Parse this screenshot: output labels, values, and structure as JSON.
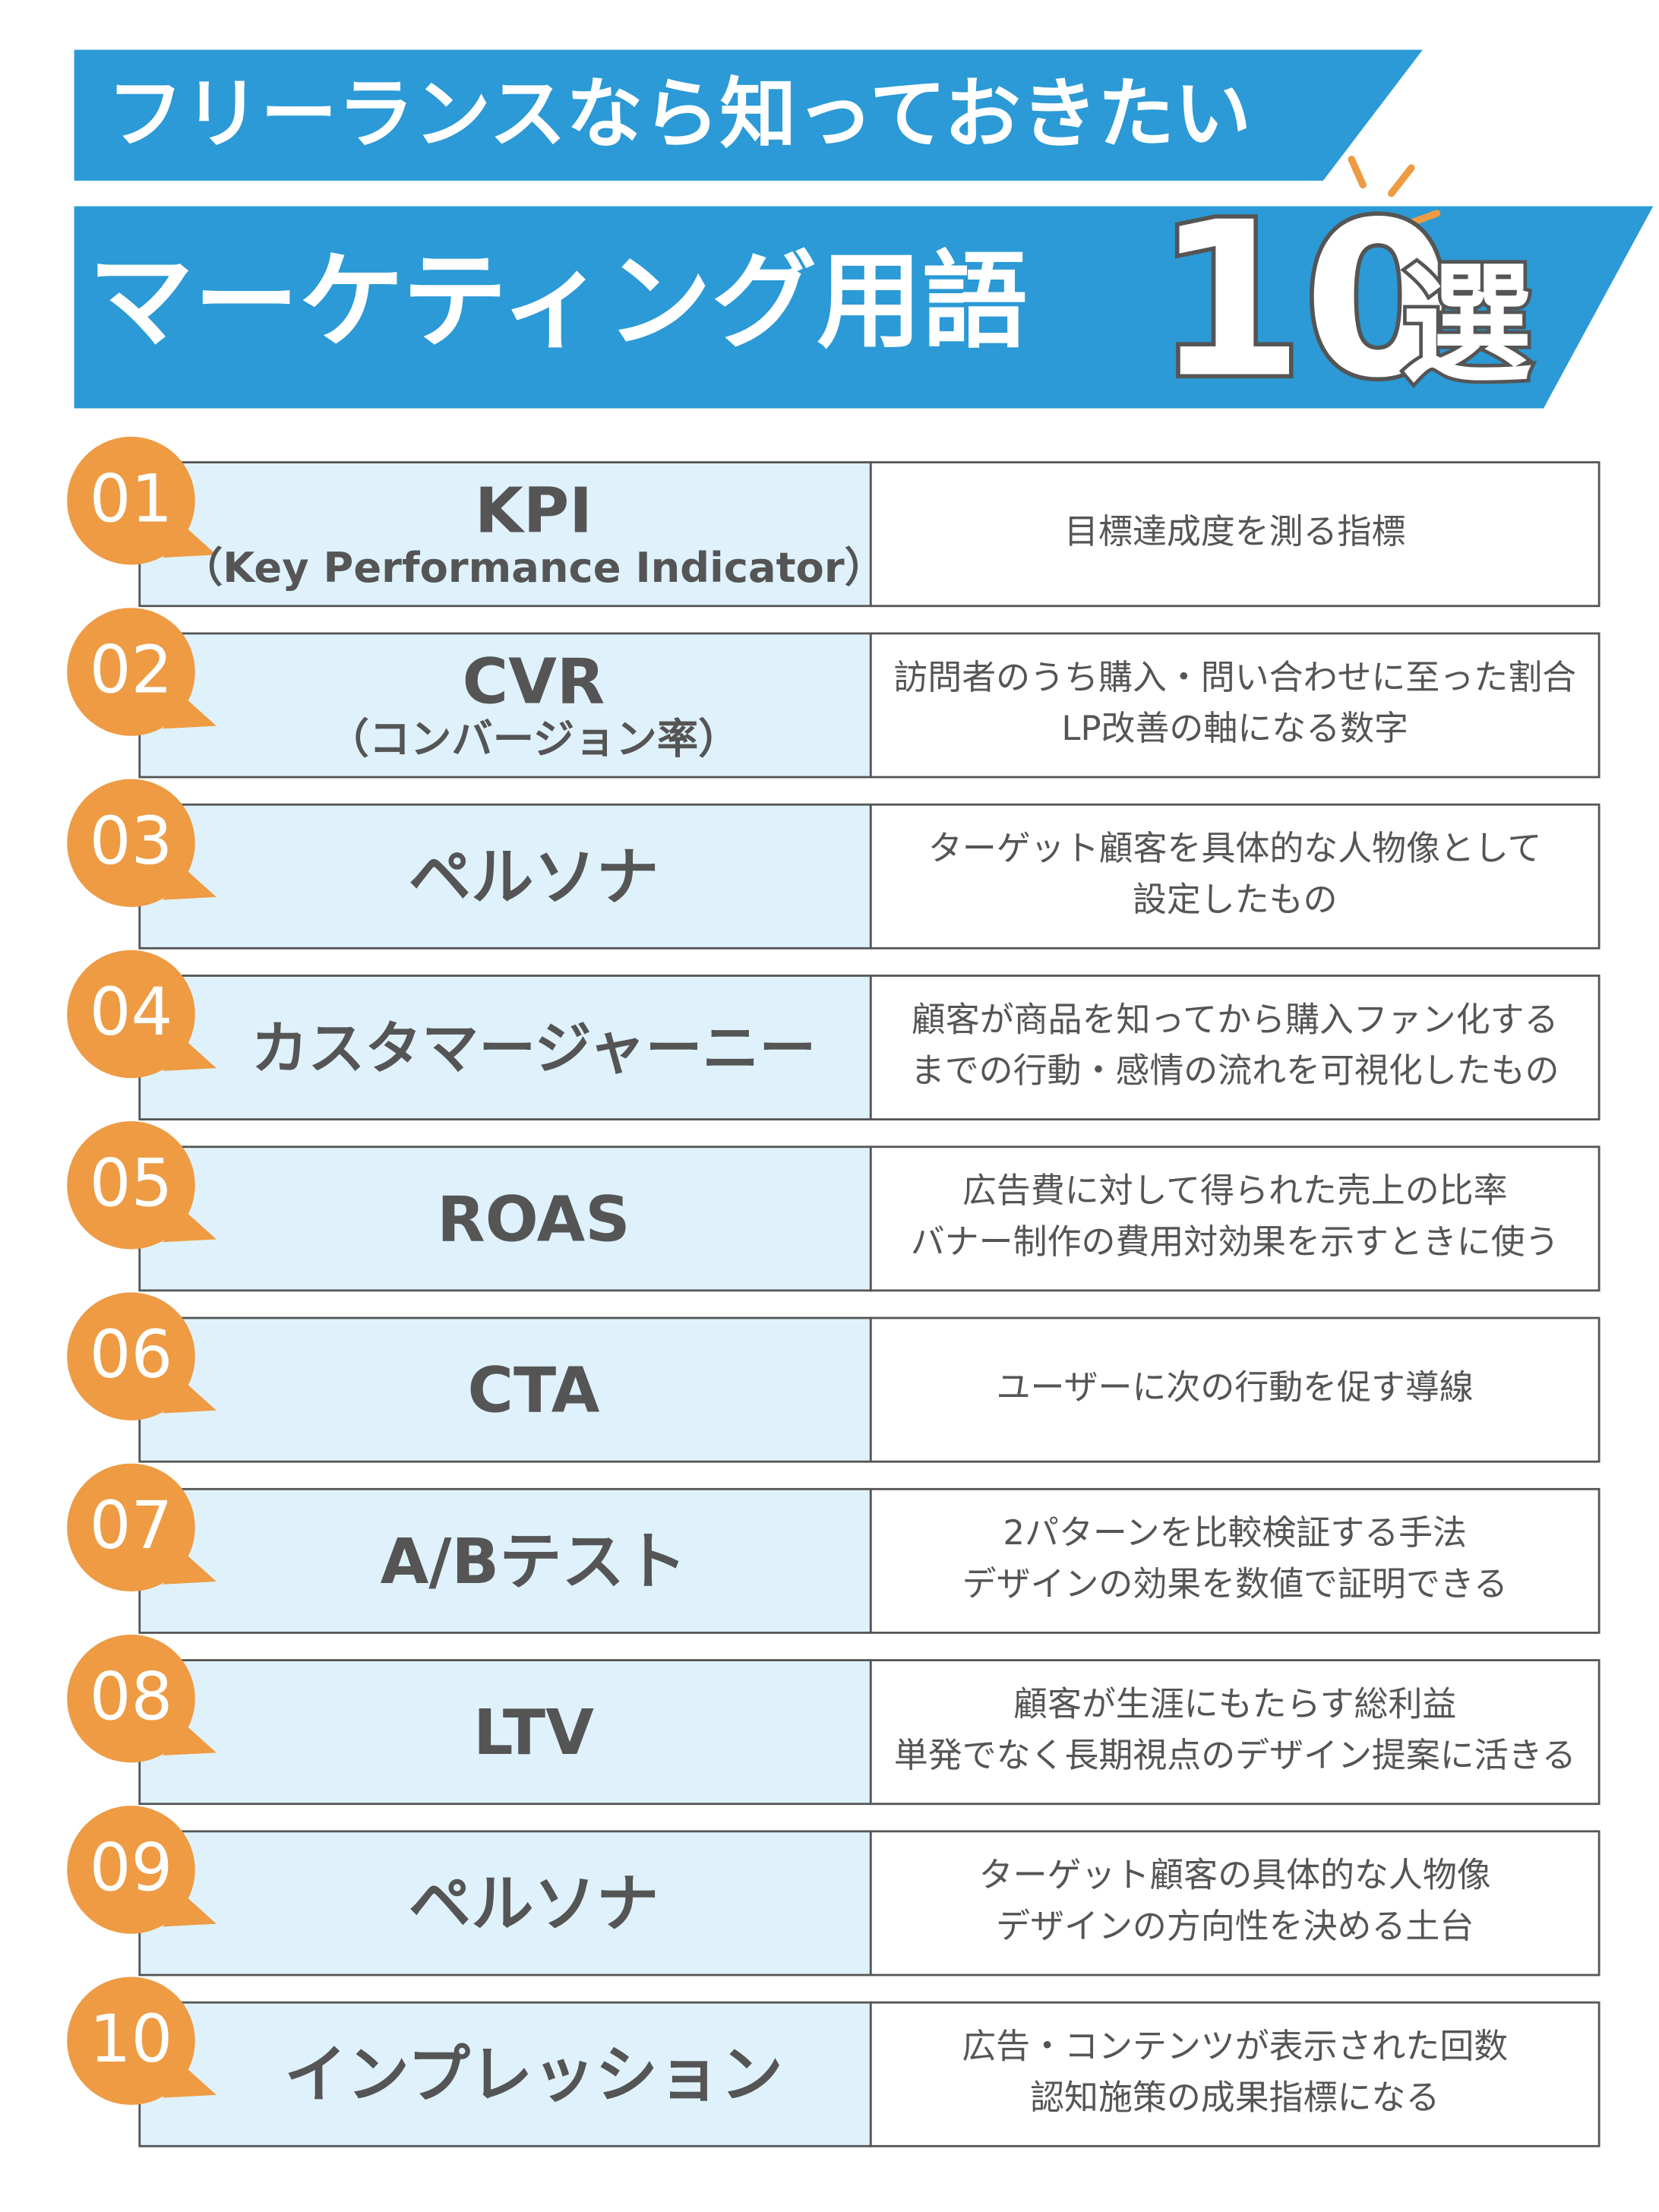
{
  "header": {
    "line1": "フリーランスなら知っておきたい",
    "line2": "マーケティング用語",
    "number": "10",
    "suffix": "選"
  },
  "items": [
    {
      "number": "01",
      "term": "KPI",
      "sub": "（Key Performance Indicator）",
      "description": [
        "目標達成度を測る指標"
      ]
    },
    {
      "number": "02",
      "term": "CVR",
      "sub": "（コンバージョン率）",
      "description": [
        "訪問者のうち購入・問い合わせに至った割合",
        "LP改善の軸になる数字"
      ]
    },
    {
      "number": "03",
      "term": "ペルソナ",
      "description": [
        "ターゲット顧客を具体的な人物像として",
        "設定したもの"
      ]
    },
    {
      "number": "04",
      "term": "カスタマージャーニー",
      "description": [
        "顧客が商品を知ってから購入ファン化する",
        "までの行動・感情の流れを可視化したもの"
      ]
    },
    {
      "number": "05",
      "term": "ROAS",
      "description": [
        "広告費に対して得られた売上の比率",
        "バナー制作の費用対効果を示すときに使う"
      ]
    },
    {
      "number": "06",
      "term": "CTA",
      "description": [
        "ユーザーに次の行動を促す導線"
      ]
    },
    {
      "number": "07",
      "term": "A/Bテスト",
      "description": [
        "2パターンを比較検証する手法",
        "デザインの効果を数値で証明できる"
      ]
    },
    {
      "number": "08",
      "term": "LTV",
      "description": [
        "顧客が生涯にもたらす総利益",
        "単発でなく長期視点のデザイン提案に活きる"
      ]
    },
    {
      "number": "09",
      "term": "ペルソナ",
      "description": [
        "ターゲット顧客の具体的な人物像",
        "デザインの方向性を決める土台"
      ]
    },
    {
      "number": "10",
      "term": "インプレッション",
      "description": [
        "広告・コンテンツが表示された回数",
        "認知施策の成果指標になる"
      ]
    }
  ]
}
